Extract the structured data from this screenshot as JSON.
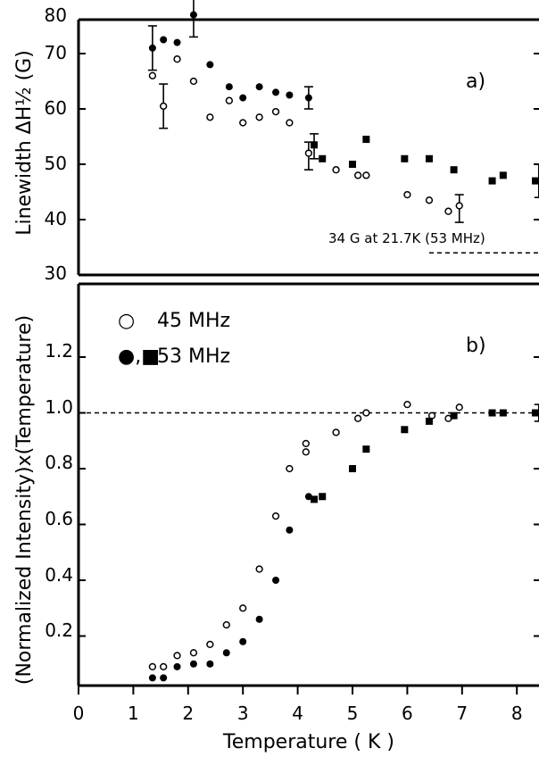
{
  "chart_data": [
    {
      "panel": "a)",
      "type": "scatter",
      "ylabel": "Linewidth ΔH½ (G)",
      "xlim": [
        0,
        8.4
      ],
      "ylim": [
        30,
        80
      ],
      "yticks": [
        "30",
        "40",
        "50",
        "60",
        "70",
        "80"
      ],
      "annotation": "34 G at 21.7K (53 MHz)",
      "reference_line": {
        "x": [
          6.4,
          8.4
        ],
        "y": 34,
        "style": "dashed"
      },
      "series": [
        {
          "key": "45",
          "marker": "open-circle",
          "points": [
            [
              1.35,
              66
            ],
            [
              1.55,
              60.5
            ],
            [
              1.8,
              69
            ],
            [
              2.1,
              65
            ],
            [
              2.4,
              58.5
            ],
            [
              2.75,
              61.5
            ],
            [
              3.0,
              57.5
            ],
            [
              3.3,
              58.5
            ],
            [
              3.6,
              59.5
            ],
            [
              3.85,
              57.5
            ],
            [
              4.2,
              52
            ],
            [
              4.7,
              49
            ],
            [
              5.1,
              48
            ],
            [
              5.25,
              48
            ],
            [
              6.0,
              44.5
            ],
            [
              6.4,
              43.5
            ],
            [
              6.75,
              41.5
            ],
            [
              6.95,
              42.5
            ]
          ]
        },
        {
          "key": "53c",
          "marker": "filled-circle",
          "points": [
            [
              1.35,
              71
            ],
            [
              1.55,
              72.5
            ],
            [
              1.8,
              72
            ],
            [
              2.1,
              77
            ],
            [
              2.4,
              68
            ],
            [
              2.75,
              64
            ],
            [
              3.0,
              62
            ],
            [
              3.3,
              64
            ],
            [
              3.6,
              63
            ],
            [
              3.85,
              62.5
            ],
            [
              4.2,
              62
            ]
          ]
        },
        {
          "key": "53s",
          "marker": "filled-square",
          "points": [
            [
              4.3,
              53.5
            ],
            [
              4.45,
              51
            ],
            [
              5.0,
              50
            ],
            [
              5.25,
              54.5
            ],
            [
              5.95,
              51
            ],
            [
              6.4,
              51
            ],
            [
              6.85,
              49
            ],
            [
              7.55,
              47
            ],
            [
              7.75,
              48
            ],
            [
              8.4,
              47
            ]
          ]
        }
      ],
      "error_bars": [
        [
          1.35,
          67,
          75
        ],
        [
          1.55,
          56.5,
          64.5
        ],
        [
          2.1,
          73,
          81
        ],
        [
          4.2,
          60,
          64
        ],
        [
          4.2,
          49,
          54
        ],
        [
          4.3,
          51,
          55.5
        ],
        [
          6.95,
          39.5,
          44.5
        ],
        [
          8.4,
          44,
          50
        ]
      ]
    },
    {
      "panel": "b)",
      "type": "scatter",
      "ylabel": "(Normalized Intensity)x(Temperature)",
      "xlabel": "Temperature ( K )",
      "xlim": [
        0,
        8.4
      ],
      "ylim": [
        0,
        1.37
      ],
      "xticks": [
        "0",
        "1",
        "2",
        "3",
        "4",
        "5",
        "6",
        "7",
        "8"
      ],
      "yticks": [
        "0.2",
        "0.4",
        "0.6",
        "0.8",
        "1.0",
        "1.2"
      ],
      "reference_line": {
        "y": 1.0,
        "style": "dashed"
      },
      "series": [
        {
          "key": "45",
          "marker": "open-circle",
          "points": [
            [
              1.35,
              0.09
            ],
            [
              1.55,
              0.09
            ],
            [
              1.8,
              0.13
            ],
            [
              2.1,
              0.14
            ],
            [
              2.4,
              0.17
            ],
            [
              2.7,
              0.24
            ],
            [
              3.0,
              0.3
            ],
            [
              3.3,
              0.44
            ],
            [
              3.6,
              0.63
            ],
            [
              3.85,
              0.8
            ],
            [
              4.15,
              0.86
            ],
            [
              4.15,
              0.89
            ],
            [
              4.7,
              0.93
            ],
            [
              5.1,
              0.98
            ],
            [
              5.25,
              1.0
            ],
            [
              6.0,
              1.03
            ],
            [
              6.45,
              0.99
            ],
            [
              6.75,
              0.98
            ],
            [
              6.95,
              1.02
            ]
          ]
        },
        {
          "key": "53c",
          "marker": "filled-circle",
          "points": [
            [
              1.35,
              0.05
            ],
            [
              1.55,
              0.05
            ],
            [
              1.8,
              0.09
            ],
            [
              2.1,
              0.1
            ],
            [
              2.4,
              0.1
            ],
            [
              2.7,
              0.14
            ],
            [
              3.0,
              0.18
            ],
            [
              3.3,
              0.26
            ],
            [
              3.6,
              0.4
            ],
            [
              3.85,
              0.58
            ],
            [
              4.2,
              0.7
            ]
          ]
        },
        {
          "key": "53s",
          "marker": "filled-square",
          "points": [
            [
              4.3,
              0.69
            ],
            [
              4.45,
              0.7
            ],
            [
              5.0,
              0.8
            ],
            [
              5.25,
              0.87
            ],
            [
              5.95,
              0.94
            ],
            [
              6.4,
              0.97
            ],
            [
              6.85,
              0.99
            ],
            [
              7.55,
              1.0
            ],
            [
              7.75,
              1.0
            ],
            [
              8.4,
              1.0
            ]
          ]
        }
      ],
      "error_bars": [
        [
          8.4,
          0.97,
          1.03
        ]
      ],
      "legend": {
        "placement": "top-left",
        "entries": [
          {
            "symbol": "○",
            "label": "45 MHz"
          },
          {
            "symbol": "●,■",
            "label": "53 MHz"
          }
        ]
      }
    }
  ]
}
